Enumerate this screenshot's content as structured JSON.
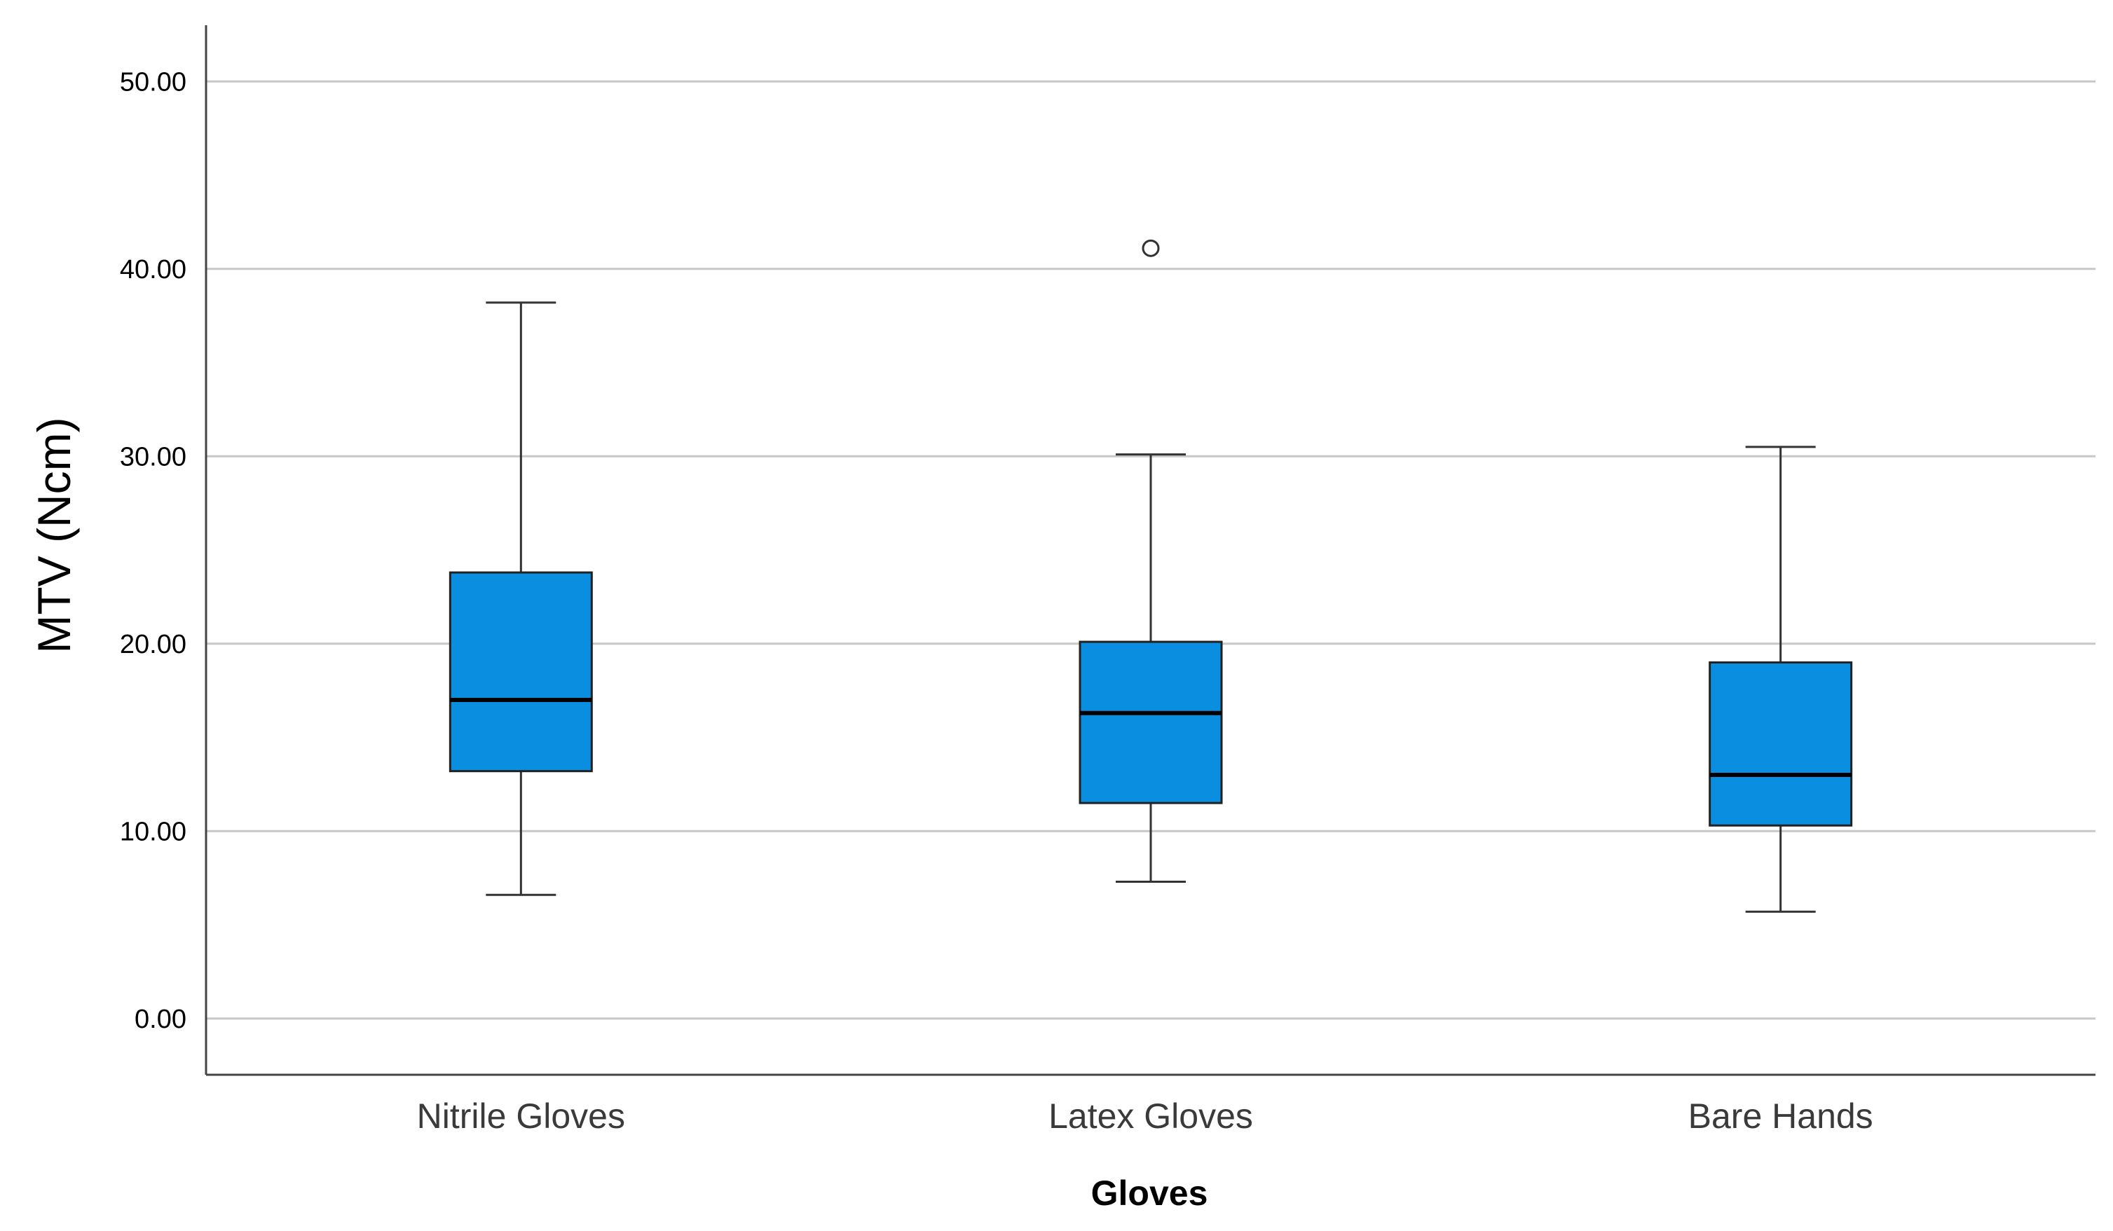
{
  "chart_data": {
    "type": "box",
    "title": "",
    "xlabel": "Gloves",
    "ylabel": "MTV (Ncm)",
    "ylim": [
      -3,
      53
    ],
    "yticks": [
      0,
      10,
      20,
      30,
      40,
      50
    ],
    "ytick_labels": [
      "0.00",
      "10.00",
      "20.00",
      "30.00",
      "40.00",
      "50.00"
    ],
    "grid": "horizontal",
    "box_color": "#0a8ee0",
    "categories": [
      "Nitrile Gloves",
      "Latex Gloves",
      "Bare Hands"
    ],
    "boxes": [
      {
        "category": "Nitrile Gloves",
        "min": 6.6,
        "q1": 13.2,
        "median": 17.0,
        "q3": 23.8,
        "max": 38.2,
        "outliers": []
      },
      {
        "category": "Latex Gloves",
        "min": 7.3,
        "q1": 11.5,
        "median": 16.3,
        "q3": 20.1,
        "max": 30.1,
        "outliers": [
          41.1
        ]
      },
      {
        "category": "Bare Hands",
        "min": 5.7,
        "q1": 10.3,
        "median": 13.0,
        "q3": 19.0,
        "max": 30.5,
        "outliers": []
      }
    ]
  }
}
